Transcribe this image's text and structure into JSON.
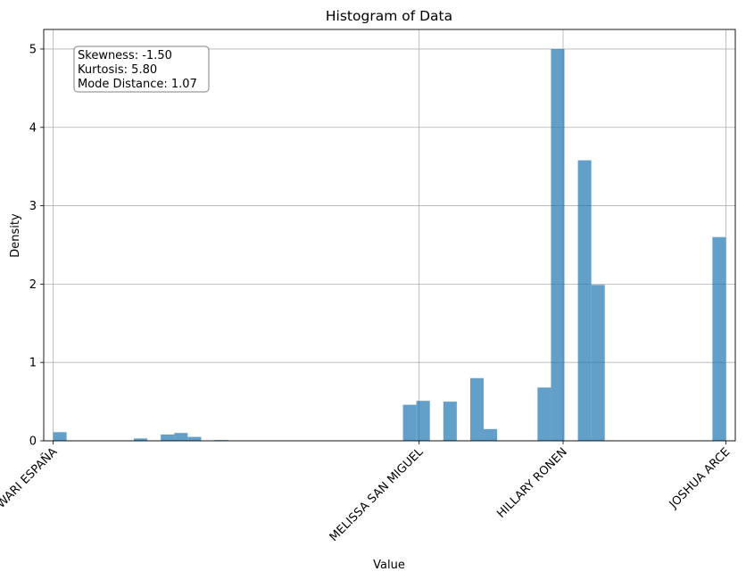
{
  "chart_data": {
    "type": "bar",
    "title": "Histogram of Data",
    "xlabel": "Value",
    "ylabel": "Density",
    "ylim": [
      0,
      5.25
    ],
    "xlim": [
      -0.07,
      5.07
    ],
    "yticks": [
      0,
      1,
      2,
      3,
      4,
      5
    ],
    "grid": true,
    "xticks": [
      {
        "value": 0.0,
        "label": "ISWARI ESPAÑA"
      },
      {
        "value": 2.72,
        "label": "MELISSA SAN MIGUEL"
      },
      {
        "value": 3.79,
        "label": "HILLARY RONEN"
      },
      {
        "value": 5.0,
        "label": "JOSHUA ARCE"
      }
    ],
    "bin_width": 0.1,
    "bins": [
      {
        "x": 0.0,
        "density": 0.11
      },
      {
        "x": 0.6,
        "density": 0.03
      },
      {
        "x": 0.8,
        "density": 0.08
      },
      {
        "x": 0.9,
        "density": 0.1
      },
      {
        "x": 1.0,
        "density": 0.05
      },
      {
        "x": 1.2,
        "density": 0.01
      },
      {
        "x": 2.6,
        "density": 0.46
      },
      {
        "x": 2.7,
        "density": 0.51
      },
      {
        "x": 2.9,
        "density": 0.5
      },
      {
        "x": 3.1,
        "density": 0.8
      },
      {
        "x": 3.2,
        "density": 0.15
      },
      {
        "x": 3.6,
        "density": 0.68
      },
      {
        "x": 3.7,
        "density": 5.0
      },
      {
        "x": 3.9,
        "density": 3.58
      },
      {
        "x": 4.0,
        "density": 1.99
      },
      {
        "x": 4.9,
        "density": 2.6
      }
    ],
    "bar_color": "#1f77b4",
    "bar_opacity": 0.7,
    "annotation": [
      "Skewness: -1.50",
      "Kurtosis: 5.80",
      "Mode Distance: 1.07"
    ]
  }
}
